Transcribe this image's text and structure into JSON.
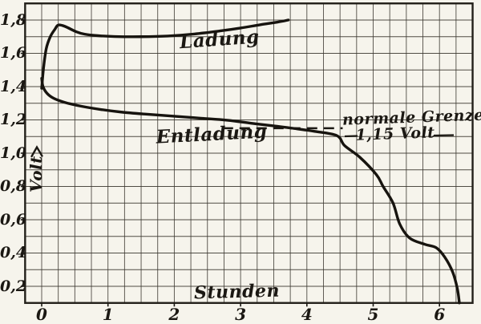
{
  "figure": {
    "paper_color": "#f6f4ec",
    "ink_color": "#1b1813",
    "grid_color": "#3a362f"
  },
  "chart_data": {
    "type": "line",
    "title": "",
    "xlabel": "Stunden",
    "ylabel": "Volt",
    "x_unit": "hours",
    "y_unit": "volts",
    "xlim": [
      -0.25,
      6.5
    ],
    "ylim": [
      0.1,
      1.9
    ],
    "grid": {
      "on": true,
      "x_minor_step_hours": 0.25,
      "y_minor_step_volts": 0.1
    },
    "x_ticks": [
      0,
      1,
      2,
      3,
      4,
      5,
      6
    ],
    "x_tick_labels": [
      "0",
      "1",
      "2",
      "3",
      "4",
      "5",
      "6"
    ],
    "y_ticks": [
      1.8,
      1.6,
      1.4,
      1.2,
      1.0,
      0.8,
      0.6,
      0.4,
      0.2
    ],
    "y_tick_labels": [
      "1,8",
      "1,6",
      "1,4",
      "1,2",
      "1,0",
      "0,8",
      "0,6",
      "0,4",
      "0,2"
    ],
    "series": [
      {
        "name": "Ladung",
        "points": [
          [
            0.0,
            1.39
          ],
          [
            0.03,
            1.52
          ],
          [
            0.07,
            1.63
          ],
          [
            0.13,
            1.7
          ],
          [
            0.2,
            1.745
          ],
          [
            0.25,
            1.77
          ],
          [
            0.35,
            1.762
          ],
          [
            0.52,
            1.73
          ],
          [
            0.65,
            1.715
          ],
          [
            0.85,
            1.706
          ],
          [
            1.1,
            1.701
          ],
          [
            1.5,
            1.7
          ],
          [
            1.9,
            1.704
          ],
          [
            2.3,
            1.716
          ],
          [
            2.7,
            1.735
          ],
          [
            3.0,
            1.752
          ],
          [
            3.3,
            1.772
          ],
          [
            3.55,
            1.787
          ],
          [
            3.72,
            1.8
          ]
        ]
      },
      {
        "name": "Entladung",
        "points": [
          [
            0.0,
            1.45
          ],
          [
            0.02,
            1.4
          ],
          [
            0.08,
            1.36
          ],
          [
            0.18,
            1.33
          ],
          [
            0.35,
            1.305
          ],
          [
            0.6,
            1.282
          ],
          [
            0.9,
            1.262
          ],
          [
            1.2,
            1.247
          ],
          [
            1.55,
            1.235
          ],
          [
            2.0,
            1.222
          ],
          [
            2.4,
            1.21
          ],
          [
            2.8,
            1.198
          ],
          [
            3.2,
            1.178
          ],
          [
            3.55,
            1.162
          ],
          [
            3.78,
            1.15
          ],
          [
            4.1,
            1.132
          ],
          [
            4.45,
            1.106
          ],
          [
            4.57,
            1.045
          ],
          [
            4.8,
            0.975
          ],
          [
            5.05,
            0.87
          ],
          [
            5.15,
            0.8
          ],
          [
            5.3,
            0.7
          ],
          [
            5.4,
            0.575
          ],
          [
            5.55,
            0.49
          ],
          [
            5.78,
            0.452
          ],
          [
            5.95,
            0.432
          ],
          [
            6.08,
            0.375
          ],
          [
            6.2,
            0.285
          ],
          [
            6.27,
            0.185
          ],
          [
            6.3,
            0.1
          ]
        ]
      }
    ],
    "annotation": {
      "label_line1": "normale Grenze",
      "label_line2": "1,15 Volt",
      "threshold_volts": 1.15,
      "dashed_from_hours": 2.73,
      "dashed_to_hours": 4.54
    }
  }
}
